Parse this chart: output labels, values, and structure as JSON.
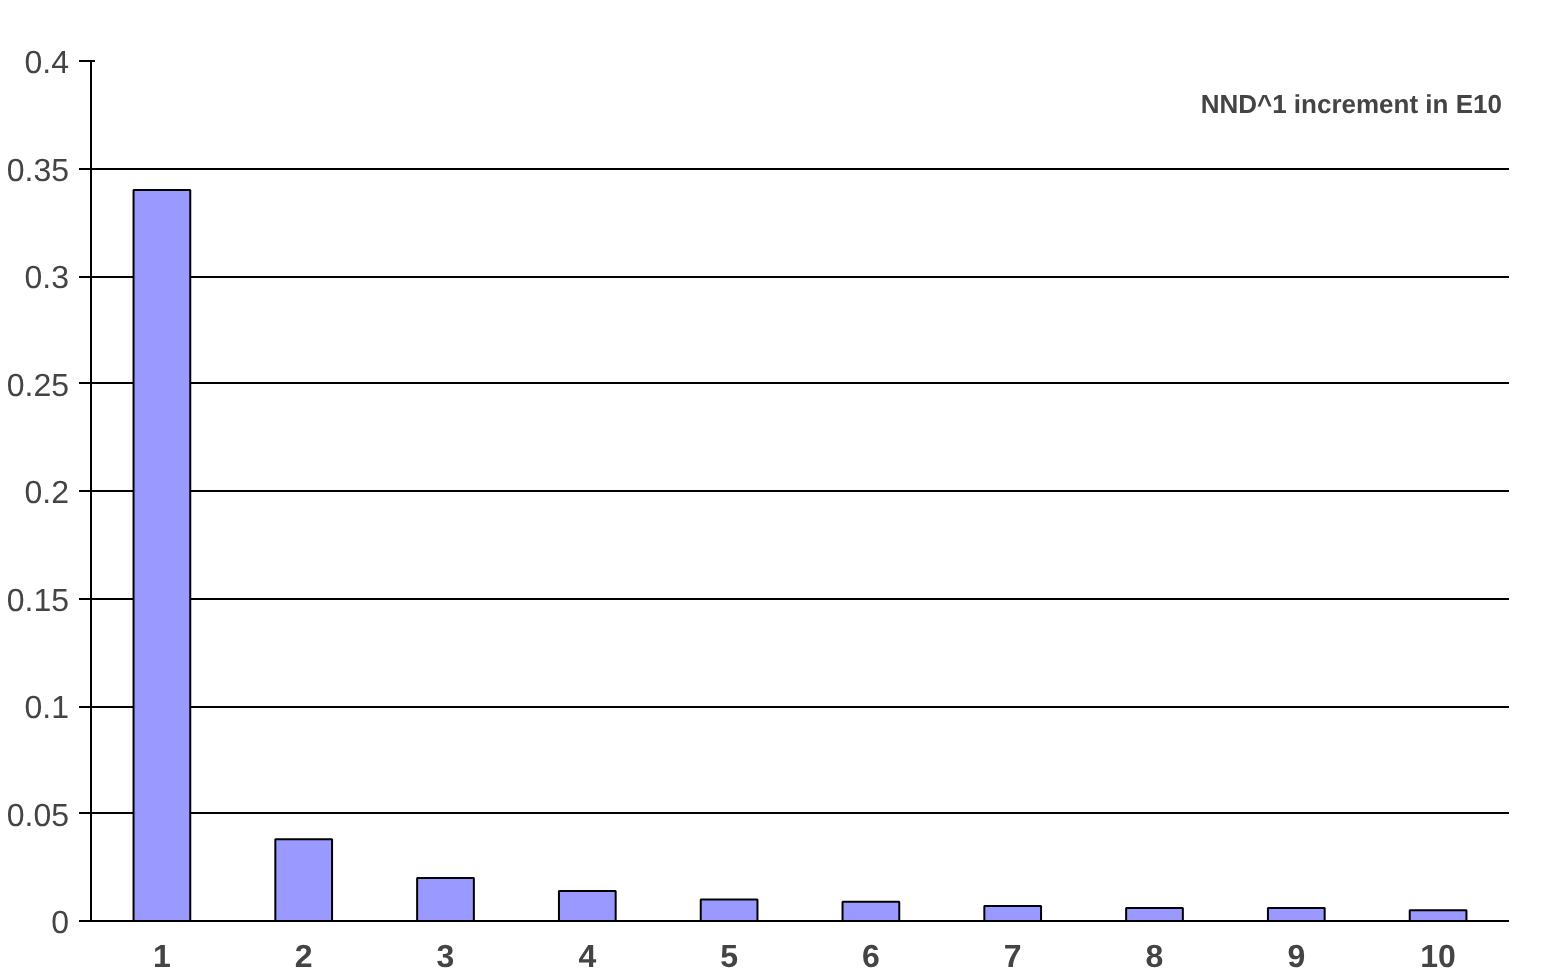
{
  "chart_data": {
    "type": "bar",
    "categories": [
      "1",
      "2",
      "3",
      "4",
      "5",
      "6",
      "7",
      "8",
      "9",
      "10"
    ],
    "values": [
      0.34,
      0.038,
      0.02,
      0.014,
      0.01,
      0.009,
      0.007,
      0.006,
      0.006,
      0.005
    ],
    "color": "#9999ff",
    "ylim": [
      0,
      0.4
    ],
    "yticks": [
      0,
      {
        "value": 0.05,
        "label": "0.05"
      },
      {
        "value": 0.1,
        "label": "0.1"
      },
      {
        "value": 0.15,
        "label": "0.15"
      },
      {
        "value": 0.2,
        "label": "0.2"
      },
      {
        "value": 0.25,
        "label": "0.25"
      },
      {
        "value": 0.3,
        "label": "0.3"
      },
      {
        "value": 0.35,
        "label": "0.35"
      },
      {
        "value": 0.4,
        "label": "0.4"
      }
    ],
    "grid": "y",
    "annotations": [
      "NND^1 increment in E10"
    ]
  }
}
